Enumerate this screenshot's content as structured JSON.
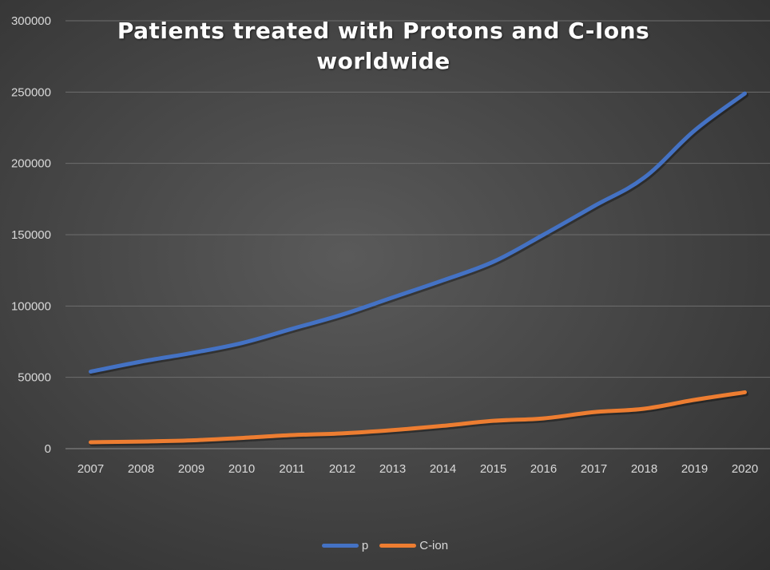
{
  "chart_data": {
    "type": "line",
    "title_lines": [
      "Patients treated with Protons and C-Ions",
      "worldwide"
    ],
    "categories": [
      "2007",
      "2008",
      "2009",
      "2010",
      "2011",
      "2012",
      "2013",
      "2014",
      "2015",
      "2016",
      "2017",
      "2018",
      "2019",
      "2020"
    ],
    "series": [
      {
        "name": "p",
        "color": "#4472c4",
        "values": [
          54000,
          61000,
          67000,
          74000,
          84000,
          94000,
          106000,
          118000,
          131000,
          150000,
          170000,
          190000,
          223000,
          249000
        ]
      },
      {
        "name": "C-ion",
        "color": "#ed7d31",
        "values": [
          4500,
          5000,
          5800,
          7500,
          9500,
          10700,
          13000,
          16000,
          19500,
          21200,
          25600,
          28000,
          34200,
          39500
        ]
      }
    ],
    "ylim": [
      0,
      300000
    ],
    "yticks": [
      "0",
      "50000",
      "100000",
      "150000",
      "200000",
      "250000",
      "300000"
    ],
    "grid": true,
    "legend_position": "bottom"
  }
}
